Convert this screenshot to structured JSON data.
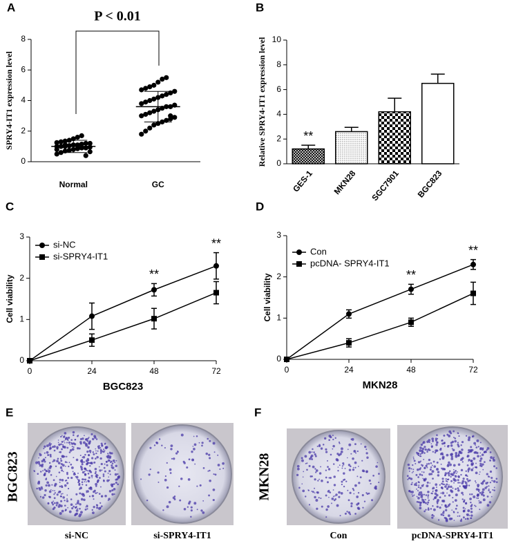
{
  "chart_data": [
    {
      "type": "dot",
      "panel_label": "A",
      "ylabel": "SPRY4-IT1 expression level",
      "annotation": "P < 0.01",
      "categories": [
        "Normal",
        "GC"
      ],
      "values": [
        [
          0.5,
          0.6,
          0.7,
          0.75,
          0.8,
          0.85,
          0.9,
          0.9,
          0.95,
          1.0,
          1.0,
          1.0,
          1.05,
          1.1,
          1.1,
          1.15,
          1.2,
          1.2,
          1.25,
          1.3,
          1.35,
          1.4,
          1.5,
          1.6,
          1.7,
          0.4,
          0.65,
          0.8,
          1.0,
          1.1
        ],
        [
          1.8,
          2.0,
          2.2,
          2.4,
          2.5,
          2.6,
          2.7,
          2.8,
          2.9,
          3.0,
          3.1,
          3.2,
          3.3,
          3.4,
          3.5,
          3.6,
          3.6,
          3.7,
          3.8,
          3.9,
          4.0,
          4.1,
          4.2,
          4.3,
          4.4,
          4.5,
          4.6,
          4.7,
          4.8,
          4.9,
          5.0,
          5.2,
          5.4,
          5.5,
          3.0
        ]
      ],
      "means": [
        1.0,
        3.6
      ],
      "sds": [
        0.4,
        1.0
      ],
      "color": "#000000",
      "ylim": [
        0,
        8
      ],
      "yticks": [
        0,
        2,
        4,
        6,
        8
      ]
    },
    {
      "type": "bar",
      "panel_label": "B",
      "ylabel": "Relative SPRY4-IT1 expression level",
      "categories": [
        "GES-1",
        "MKN28",
        "SGC7901",
        "BGC823"
      ],
      "values": [
        1.2,
        2.6,
        4.2,
        6.5
      ],
      "errors": [
        0.3,
        0.35,
        1.1,
        0.75
      ],
      "significance": [
        "**",
        null,
        null,
        null
      ],
      "color": "#000000",
      "ylim": [
        0,
        10
      ],
      "yticks": [
        0,
        2,
        4,
        6,
        8,
        10
      ]
    },
    {
      "type": "line",
      "panel_label": "C",
      "xlabel": "BGC823",
      "ylabel": "Cell viability",
      "x": [
        0,
        24,
        48,
        72
      ],
      "series": [
        {
          "name": "si-NC",
          "color": "#000000",
          "values": [
            0,
            1.08,
            1.72,
            2.3
          ],
          "errors": [
            0,
            0.32,
            0.15,
            0.32
          ]
        },
        {
          "name": "si-SPRY4-IT1",
          "color": "#000000",
          "values": [
            0,
            0.5,
            1.02,
            1.65
          ],
          "errors": [
            0,
            0.15,
            0.25,
            0.27
          ]
        }
      ],
      "significance": [
        null,
        null,
        "**",
        "**"
      ],
      "xlim": [
        0,
        72
      ],
      "xticks": [
        0,
        24,
        48,
        72
      ],
      "ylim": [
        0,
        3
      ],
      "yticks": [
        0,
        1,
        2,
        3
      ]
    },
    {
      "type": "line",
      "panel_label": "D",
      "xlabel": "MKN28",
      "ylabel": "Cell viability",
      "x": [
        0,
        24,
        48,
        72
      ],
      "series": [
        {
          "name": "Con",
          "color": "#000000",
          "values": [
            0,
            1.1,
            1.7,
            2.3
          ],
          "errors": [
            0,
            0.1,
            0.12,
            0.12
          ]
        },
        {
          "name": "pcDNA- SPRY4-IT1",
          "color": "#000000",
          "values": [
            0,
            0.4,
            0.9,
            1.6
          ],
          "errors": [
            0,
            0.1,
            0.1,
            0.27
          ]
        }
      ],
      "significance": [
        null,
        null,
        "**",
        "**"
      ],
      "xlim": [
        0,
        72
      ],
      "xticks": [
        0,
        24,
        48,
        72
      ],
      "ylim": [
        0,
        3
      ],
      "yticks": [
        0,
        1,
        2,
        3
      ]
    }
  ],
  "photo_panels": [
    {
      "panel_label": "E",
      "cell_line": "BGC823",
      "labels": [
        "si-NC",
        "si-SPRY4-IT1"
      ]
    },
    {
      "panel_label": "F",
      "cell_line": "MKN28",
      "labels": [
        "Con",
        "pcDNA-SPRY4-IT1"
      ]
    }
  ]
}
